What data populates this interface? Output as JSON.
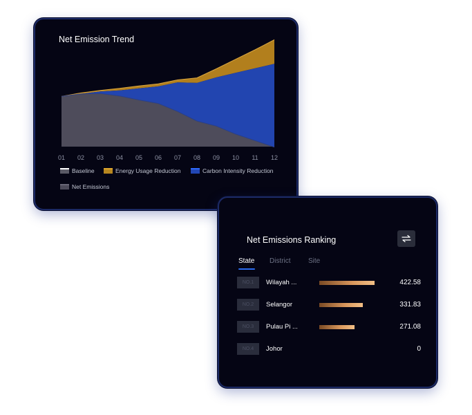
{
  "trend": {
    "title": "Net Emission Trend",
    "legend": [
      {
        "label": "Baseline",
        "color": "#5a5a66"
      },
      {
        "label": "Energy Usage Reduction",
        "color": "#b7871f"
      },
      {
        "label": "Carbon Intensity Reduction",
        "color": "#2247b5"
      },
      {
        "label": "Net Emissions",
        "color": "#4d4b5a"
      }
    ]
  },
  "chart_data": {
    "type": "area",
    "categories": [
      "01",
      "02",
      "03",
      "04",
      "05",
      "06",
      "07",
      "08",
      "09",
      "10",
      "11",
      "12"
    ],
    "series": [
      {
        "name": "Baseline",
        "values": [
          100,
          107,
          112,
          116,
          121,
          125,
          133,
          137,
          155,
          174,
          193,
          213
        ]
      },
      {
        "name": "Energy Usage Reduction",
        "values": [
          0,
          2,
          2,
          4,
          5,
          5,
          5,
          10,
          17,
          27,
          37,
          48
        ]
      },
      {
        "name": "Carbon Intensity Reduction",
        "values": [
          0,
          0,
          4,
          11,
          23,
          34,
          58,
          76,
          97,
          122,
          144,
          166
        ]
      },
      {
        "name": "Net Emissions",
        "values": [
          100,
          105,
          106,
          101,
          93,
          86,
          70,
          51,
          41,
          25,
          12,
          -1
        ]
      }
    ],
    "ylim": [
      0,
      215
    ],
    "grid": false,
    "legend_position": "bottom"
  },
  "ranking": {
    "title": "Net Emissions Ranking",
    "tabs": [
      "State",
      "District",
      "Site"
    ],
    "active_tab": "State",
    "rows": [
      {
        "rank": "NO.1",
        "name": "Wilayah ...",
        "value": "422.58",
        "level": 422.58
      },
      {
        "rank": "NO.2",
        "name": "Selangor",
        "value": "331.83",
        "level": 331.83
      },
      {
        "rank": "NO.3",
        "name": "Pulau Pi ...",
        "value": "271.08",
        "level": 271.08
      },
      {
        "rank": "NO.4",
        "name": "Johor",
        "value": "0",
        "level": 0
      }
    ],
    "max_level": 422.58,
    "bar_colors": [
      "#7a4a24",
      "#f2bf86"
    ],
    "swap_icon": "swap-arrows-icon"
  }
}
